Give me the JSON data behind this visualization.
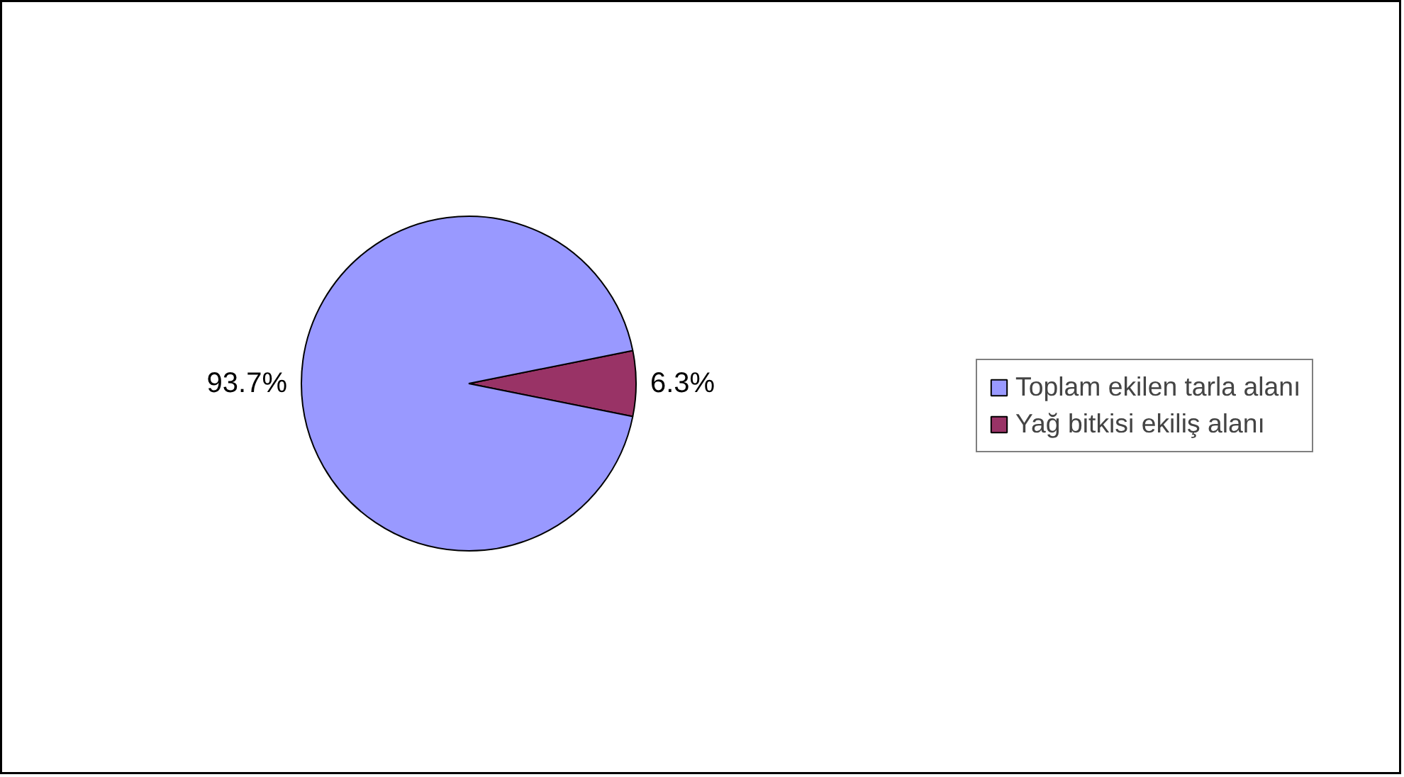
{
  "chart_data": {
    "type": "pie",
    "categories": [
      "Toplam ekilen tarla alanı",
      "Yağ bitkisi ekiliş alanı"
    ],
    "values": [
      93.7,
      6.3
    ],
    "colors": [
      "#9999ff",
      "#993366"
    ],
    "value_labels": [
      "93.7%",
      "6.3%"
    ],
    "legend": "right"
  }
}
